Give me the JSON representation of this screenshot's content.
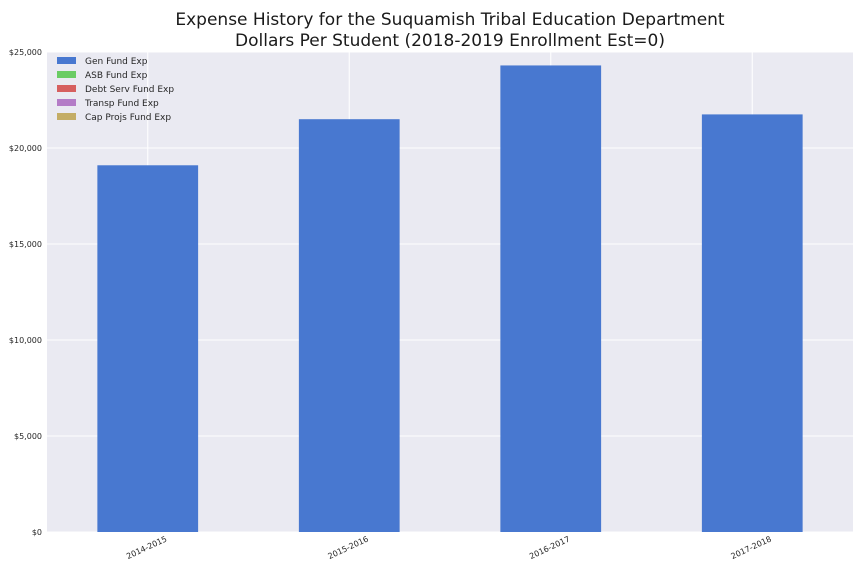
{
  "chart_data": {
    "type": "bar",
    "title_lines": [
      "Expense History for the Suquamish Tribal Education Department",
      "Dollars Per Student (2018-2019 Enrollment Est=0)"
    ],
    "xlabel": "",
    "ylabel": "",
    "categories": [
      "2014-2015",
      "2015-2016",
      "2016-2017",
      "2017-2018"
    ],
    "series": [
      {
        "name": "Gen Fund Exp",
        "color": "#4878d0",
        "values": [
          19100,
          21500,
          24300,
          21750
        ]
      },
      {
        "name": "ASB Fund Exp",
        "color": "#6acc64",
        "values": [
          0,
          0,
          0,
          0
        ]
      },
      {
        "name": "Debt Serv Fund Exp",
        "color": "#d65f5f",
        "values": [
          0,
          0,
          0,
          0
        ]
      },
      {
        "name": "Transp Fund Exp",
        "color": "#b47cc7",
        "values": [
          0,
          0,
          0,
          0
        ]
      },
      {
        "name": "Cap Projs Fund Exp",
        "color": "#c4ad66",
        "values": [
          0,
          0,
          0,
          0
        ]
      }
    ],
    "stacked": true,
    "ylim": [
      0,
      25000
    ],
    "yticks": [
      0,
      5000,
      10000,
      15000,
      20000,
      25000
    ],
    "ytick_labels": [
      "$0",
      "$5,000",
      "$10,000",
      "$15,000",
      "$20,000",
      "$25,000"
    ],
    "grid": true,
    "legend_position": "top-left",
    "plot_background": "#eaeaf2",
    "grid_color": "#ffffff"
  }
}
